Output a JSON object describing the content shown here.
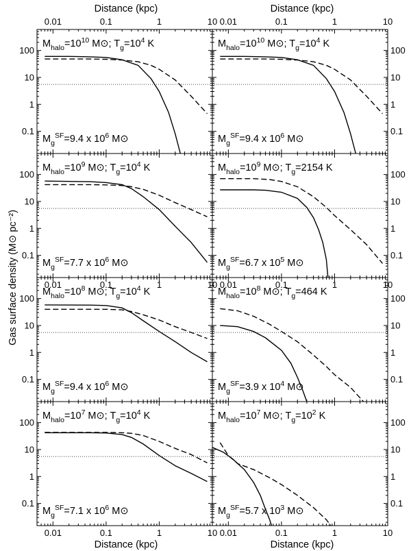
{
  "figure": {
    "top_xlabel": "Distance (kpc)",
    "bottom_xlabel": "Distance (kpc)",
    "ylabel": "Gas surface density (M⊙ pc⁻²)"
  },
  "chart_data": [
    {
      "type": "line",
      "xscale": "log",
      "yscale": "log",
      "xlim": [
        0.005,
        10
      ],
      "ylim": [
        0.015,
        600
      ],
      "xticks": [
        "0.01",
        "0.1",
        "1",
        "10"
      ],
      "yticks": [
        "0.1",
        "1",
        "10",
        "100"
      ],
      "label_halo": "M<sub>halo</sub>=10<sup>10</sup> M⊙; T<sub>g</sub>=10<sup>4</sup> K",
      "label_sf": "M<sub>g</sub><sup>SF</sup>=9.4 x 10<sup>6</sup> M⊙",
      "series": [
        {
          "style": "solid",
          "points": [
            [
              0.007,
              60
            ],
            [
              0.02,
              60
            ],
            [
              0.05,
              58
            ],
            [
              0.1,
              55
            ],
            [
              0.2,
              45
            ],
            [
              0.4,
              28
            ],
            [
              0.7,
              9
            ],
            [
              1,
              3
            ],
            [
              1.5,
              0.5
            ],
            [
              2,
              0.08
            ],
            [
              2.5,
              0.015
            ]
          ]
        },
        {
          "style": "dashed",
          "points": [
            [
              0.007,
              48
            ],
            [
              0.05,
              48
            ],
            [
              0.1,
              47
            ],
            [
              0.2,
              44
            ],
            [
              0.4,
              38
            ],
            [
              0.7,
              28
            ],
            [
              1,
              20
            ],
            [
              2,
              8
            ],
            [
              4,
              2
            ],
            [
              8,
              0.45
            ]
          ]
        },
        {
          "style": "dotted",
          "points": [
            [
              0.005,
              5.5
            ],
            [
              10,
              5.5
            ]
          ]
        }
      ]
    },
    {
      "type": "line",
      "xscale": "log",
      "yscale": "log",
      "xlim": [
        0.005,
        10
      ],
      "ylim": [
        0.015,
        600
      ],
      "xticks": [
        "0.01",
        "0.1",
        "1",
        "10"
      ],
      "yticks": [
        "0.1",
        "1",
        "10",
        "100"
      ],
      "label_halo": "M<sub>halo</sub>=10<sup>10</sup> M⊙; T<sub>g</sub>=10<sup>4</sup> K",
      "label_sf": "M<sub>g</sub><sup>SF</sup>=9.4 x 10<sup>6</sup> M⊙",
      "series": [
        {
          "style": "solid",
          "points": [
            [
              0.007,
              60
            ],
            [
              0.02,
              60
            ],
            [
              0.05,
              58
            ],
            [
              0.1,
              55
            ],
            [
              0.2,
              45
            ],
            [
              0.4,
              28
            ],
            [
              0.7,
              9
            ],
            [
              1,
              3
            ],
            [
              1.5,
              0.5
            ],
            [
              2,
              0.08
            ],
            [
              2.5,
              0.015
            ]
          ]
        },
        {
          "style": "dashed",
          "points": [
            [
              0.007,
              48
            ],
            [
              0.05,
              48
            ],
            [
              0.1,
              47
            ],
            [
              0.2,
              44
            ],
            [
              0.4,
              38
            ],
            [
              0.7,
              28
            ],
            [
              1,
              20
            ],
            [
              2,
              8
            ],
            [
              4,
              2
            ],
            [
              8,
              0.45
            ]
          ]
        },
        {
          "style": "dotted",
          "points": [
            [
              0.005,
              5.5
            ],
            [
              10,
              5.5
            ]
          ]
        }
      ]
    },
    {
      "type": "line",
      "xscale": "log",
      "yscale": "log",
      "xlim": [
        0.005,
        10
      ],
      "ylim": [
        0.015,
        600
      ],
      "xticks": [
        "0.01",
        "0.1",
        "1",
        "10"
      ],
      "yticks": [
        "0.1",
        "1",
        "10",
        "100"
      ],
      "label_halo": "M<sub>halo</sub>=10<sup>9</sup> M⊙; T<sub>g</sub>=10<sup>4</sup> K",
      "label_sf": "M<sub>g</sub><sup>SF</sup>=7.7 x 10<sup>6</sup> M⊙",
      "series": [
        {
          "style": "solid",
          "points": [
            [
              0.007,
              57
            ],
            [
              0.05,
              54
            ],
            [
              0.1,
              50
            ],
            [
              0.2,
              42
            ],
            [
              0.3,
              30
            ],
            [
              0.5,
              15
            ],
            [
              1,
              5
            ],
            [
              2,
              1.2
            ],
            [
              4,
              0.3
            ],
            [
              8,
              0.055
            ]
          ]
        },
        {
          "style": "dashed",
          "points": [
            [
              0.007,
              42
            ],
            [
              0.05,
              42
            ],
            [
              0.1,
              41
            ],
            [
              0.2,
              39
            ],
            [
              0.3,
              35
            ],
            [
              0.5,
              28
            ],
            [
              1,
              17
            ],
            [
              2,
              9
            ],
            [
              4,
              5
            ],
            [
              8,
              2.7
            ]
          ]
        },
        {
          "style": "dotted",
          "points": [
            [
              0.005,
              5.5
            ],
            [
              10,
              5.5
            ]
          ]
        }
      ]
    },
    {
      "type": "line",
      "xscale": "log",
      "yscale": "log",
      "xlim": [
        0.005,
        10
      ],
      "ylim": [
        0.015,
        600
      ],
      "xticks": [
        "0.01",
        "0.1",
        "1",
        "10"
      ],
      "yticks": [
        "0.1",
        "1",
        "10",
        "100"
      ],
      "label_halo": "M<sub>halo</sub>=10<sup>9</sup> M⊙; T<sub>g</sub>=2154 K",
      "label_sf": "M<sub>g</sub><sup>SF</sup>=6.7 x 10<sup>5</sup> M⊙",
      "series": [
        {
          "style": "solid",
          "points": [
            [
              0.007,
              27
            ],
            [
              0.03,
              27
            ],
            [
              0.05,
              26
            ],
            [
              0.1,
              22
            ],
            [
              0.2,
              13
            ],
            [
              0.3,
              6
            ],
            [
              0.4,
              2.5
            ],
            [
              0.5,
              0.9
            ],
            [
              0.6,
              0.3
            ],
            [
              0.7,
              0.07
            ],
            [
              0.75,
              0.015
            ]
          ]
        },
        {
          "style": "dashed",
          "points": [
            [
              0.007,
              70
            ],
            [
              0.03,
              70
            ],
            [
              0.06,
              65
            ],
            [
              0.1,
              55
            ],
            [
              0.2,
              35
            ],
            [
              0.4,
              15
            ],
            [
              0.7,
              6
            ],
            [
              1,
              3
            ],
            [
              2,
              0.9
            ],
            [
              4,
              0.25
            ],
            [
              8,
              0.05
            ]
          ]
        },
        {
          "style": "dotted",
          "points": [
            [
              0.005,
              5.5
            ],
            [
              10,
              5.5
            ]
          ]
        }
      ]
    },
    {
      "type": "line",
      "xscale": "log",
      "yscale": "log",
      "xlim": [
        0.005,
        10
      ],
      "ylim": [
        0.015,
        600
      ],
      "xticks": [
        "0.01",
        "0.1",
        "1",
        "10"
      ],
      "yticks": [
        "0.1",
        "1",
        "10",
        "100"
      ],
      "label_halo": "M<sub>halo</sub>=10<sup>8</sup> M⊙; T<sub>g</sub>=10<sup>4</sup> K",
      "label_sf": "M<sub>g</sub><sup>SF</sup>=9.4 x 10<sup>6</sup> M⊙",
      "series": [
        {
          "style": "solid",
          "points": [
            [
              0.007,
              58
            ],
            [
              0.05,
              57
            ],
            [
              0.1,
              55
            ],
            [
              0.2,
              45
            ],
            [
              0.3,
              30
            ],
            [
              0.5,
              15
            ],
            [
              1,
              6
            ],
            [
              2,
              2.5
            ],
            [
              4,
              1
            ],
            [
              8,
              0.45
            ]
          ]
        },
        {
          "style": "dashed",
          "points": [
            [
              0.007,
              40
            ],
            [
              0.05,
              40
            ],
            [
              0.1,
              40
            ],
            [
              0.2,
              38
            ],
            [
              0.3,
              33
            ],
            [
              0.5,
              25
            ],
            [
              1,
              16
            ],
            [
              2,
              9
            ],
            [
              4,
              5.5
            ],
            [
              8,
              3.3
            ]
          ]
        },
        {
          "style": "dotted",
          "points": [
            [
              0.005,
              5.5
            ],
            [
              10,
              5.5
            ]
          ]
        }
      ]
    },
    {
      "type": "line",
      "xscale": "log",
      "yscale": "log",
      "xlim": [
        0.005,
        10
      ],
      "ylim": [
        0.015,
        600
      ],
      "xticks": [
        "0.01",
        "0.1",
        "1",
        "10"
      ],
      "yticks": [
        "0.1",
        "1",
        "10",
        "100"
      ],
      "label_halo": "M<sub>halo</sub>=10<sup>8</sup> M⊙; T<sub>g</sub>=464 K",
      "label_sf": "M<sub>g</sub><sup>SF</sup>=3.9 x 10<sup>4</sup> M⊙",
      "series": [
        {
          "style": "solid",
          "points": [
            [
              0.007,
              10
            ],
            [
              0.015,
              9
            ],
            [
              0.03,
              6
            ],
            [
              0.05,
              3.5
            ],
            [
              0.1,
              1.2
            ],
            [
              0.15,
              0.4
            ],
            [
              0.2,
              0.12
            ],
            [
              0.25,
              0.04
            ],
            [
              0.3,
              0.015
            ]
          ]
        },
        {
          "style": "dashed",
          "points": [
            [
              0.007,
              42
            ],
            [
              0.015,
              35
            ],
            [
              0.03,
              22
            ],
            [
              0.06,
              11
            ],
            [
              0.1,
              6
            ],
            [
              0.2,
              2.5
            ],
            [
              0.4,
              0.8
            ],
            [
              0.7,
              0.3
            ],
            [
              1,
              0.15
            ],
            [
              2,
              0.05
            ],
            [
              3.5,
              0.015
            ]
          ]
        },
        {
          "style": "dotted",
          "points": [
            [
              0.005,
              5.5
            ],
            [
              10,
              5.5
            ]
          ]
        }
      ]
    },
    {
      "type": "line",
      "xscale": "log",
      "yscale": "log",
      "xlim": [
        0.005,
        10
      ],
      "ylim": [
        0.015,
        600
      ],
      "xticks": [
        "0.01",
        "0.1",
        "1",
        "10"
      ],
      "yticks": [
        "0.1",
        "1",
        "10",
        "100"
      ],
      "label_halo": "M<sub>halo</sub>=10<sup>7</sup> M⊙; T<sub>g</sub>=10<sup>4</sup> K",
      "label_sf": "M<sub>g</sub><sup>SF</sup>=7.1 x 10<sup>6</sup> M⊙",
      "series": [
        {
          "style": "solid",
          "points": [
            [
              0.007,
              42
            ],
            [
              0.05,
              42
            ],
            [
              0.1,
              41
            ],
            [
              0.2,
              36
            ],
            [
              0.3,
              28
            ],
            [
              0.5,
              16
            ],
            [
              1,
              6
            ],
            [
              2,
              2.5
            ],
            [
              4,
              1.3
            ],
            [
              8,
              0.65
            ]
          ]
        },
        {
          "style": "dashed",
          "points": [
            [
              0.007,
              43
            ],
            [
              0.05,
              43
            ],
            [
              0.1,
              43
            ],
            [
              0.2,
              42
            ],
            [
              0.3,
              40
            ],
            [
              0.5,
              33
            ],
            [
              1,
              20
            ],
            [
              2,
              11
            ],
            [
              4,
              6.5
            ],
            [
              8,
              3.2
            ]
          ]
        },
        {
          "style": "dotted",
          "points": [
            [
              0.005,
              5.5
            ],
            [
              10,
              5.5
            ]
          ]
        }
      ]
    },
    {
      "type": "line",
      "xscale": "log",
      "yscale": "log",
      "xlim": [
        0.005,
        10
      ],
      "ylim": [
        0.015,
        600
      ],
      "xticks": [
        "0.01",
        "0.1",
        "1",
        "10"
      ],
      "yticks": [
        "0.1",
        "1",
        "10",
        "100"
      ],
      "label_halo": "M<sub>halo</sub>=10<sup>7</sup> M⊙; T<sub>g</sub>=10<sup>2</sup> K",
      "label_sf": "M<sub>g</sub><sup>SF</sup>=5.7 x 10<sup>3</sup> M⊙",
      "series": [
        {
          "style": "solid",
          "points": [
            [
              0.005,
              12
            ],
            [
              0.008,
              8
            ],
            [
              0.012,
              4.5
            ],
            [
              0.02,
              1.8
            ],
            [
              0.03,
              0.6
            ],
            [
              0.04,
              0.2
            ],
            [
              0.05,
              0.06
            ],
            [
              0.06,
              0.025
            ],
            [
              0.065,
              0.015
            ]
          ]
        },
        {
          "style": "dashed",
          "points": [
            [
              0.007,
              18
            ],
            [
              0.01,
              6
            ],
            [
              0.015,
              3
            ],
            [
              0.03,
              1.8
            ],
            [
              0.06,
              0.9
            ],
            [
              0.1,
              0.5
            ],
            [
              0.2,
              0.2
            ],
            [
              0.4,
              0.07
            ],
            [
              0.7,
              0.025
            ],
            [
              0.85,
              0.015
            ]
          ]
        },
        {
          "style": "dotted",
          "points": [
            [
              0.005,
              5.5
            ],
            [
              10,
              5.5
            ]
          ]
        }
      ]
    }
  ]
}
